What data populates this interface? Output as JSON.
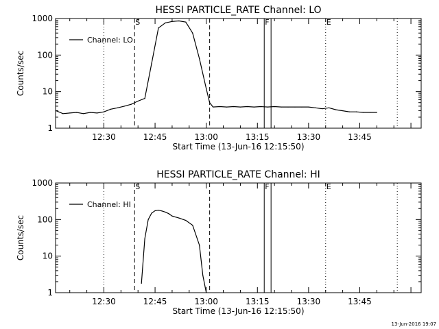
{
  "footer_date": "13-Jun-2016 19:07",
  "chart_data": [
    {
      "type": "line",
      "title": "HESSI PARTICLE_RATE Channel: LO",
      "xlabel": "Start Time (13-Jun-16 12:15:50)",
      "ylabel": "Counts/sec",
      "yscale": "log",
      "ylim": [
        1,
        1000
      ],
      "ytick_labels": [
        "1",
        "10",
        "100",
        "1000"
      ],
      "xlim": [
        "12:15:50",
        "14:03:00"
      ],
      "xtick_labels": [
        "12:30",
        "12:45",
        "13:00",
        "13:15",
        "13:30",
        "13:45"
      ],
      "legend": "top-left",
      "series": [
        {
          "name": "Channel: LO",
          "x": [
            "12:16",
            "12:18",
            "12:20",
            "12:22",
            "12:24",
            "12:26",
            "12:28",
            "12:30",
            "12:32",
            "12:34",
            "12:36",
            "12:38",
            "12:40",
            "12:42",
            "12:44",
            "12:46",
            "12:48",
            "12:50",
            "12:52",
            "12:54",
            "12:56",
            "12:58",
            "13:00",
            "13:01",
            "13:02",
            "13:04",
            "13:06",
            "13:08",
            "13:10",
            "13:12",
            "13:14",
            "13:16",
            "13:18",
            "13:20",
            "13:22",
            "13:24",
            "13:26",
            "13:28",
            "13:30",
            "13:32",
            "13:34",
            "13:36",
            "13:38",
            "13:40",
            "13:42",
            "13:44",
            "13:46",
            "13:48",
            "13:50"
          ],
          "y": [
            3,
            2.5,
            2.6,
            2.7,
            2.5,
            2.7,
            2.6,
            2.8,
            3.3,
            3.6,
            4,
            4.5,
            5.5,
            6.5,
            60,
            550,
            760,
            830,
            860,
            800,
            400,
            80,
            12,
            5,
            3.8,
            3.9,
            3.8,
            3.9,
            3.8,
            3.9,
            3.8,
            3.9,
            3.8,
            3.9,
            3.8,
            3.8,
            3.8,
            3.8,
            3.8,
            3.6,
            3.4,
            3.6,
            3.2,
            3,
            2.8,
            2.8,
            2.7,
            2.7,
            2.7
          ]
        }
      ],
      "markers": [
        {
          "label": "S",
          "time": "12:39",
          "style": "dashed"
        },
        {
          "label": "",
          "time": "13:01",
          "style": "dashed"
        },
        {
          "label": "",
          "time": "12:30",
          "style": "dotted"
        },
        {
          "label": "F",
          "time": "13:17",
          "style": "solid"
        },
        {
          "label": "",
          "time": "13:19",
          "style": "solid"
        },
        {
          "label": "E",
          "time": "13:35",
          "style": "dotted"
        },
        {
          "label": "",
          "time": "13:56",
          "style": "dotted"
        }
      ]
    },
    {
      "type": "line",
      "title": "HESSI PARTICLE_RATE Channel: HI",
      "xlabel": "Start Time (13-Jun-16 12:15:50)",
      "ylabel": "Counts/sec",
      "yscale": "log",
      "ylim": [
        1,
        1000
      ],
      "ytick_labels": [
        "1",
        "10",
        "100",
        "1000"
      ],
      "xlim": [
        "12:15:50",
        "14:03:00"
      ],
      "xtick_labels": [
        "12:30",
        "12:45",
        "13:00",
        "13:15",
        "13:30",
        "13:45"
      ],
      "legend": "top-left",
      "series": [
        {
          "name": "Channel: HI",
          "x": [
            "12:41",
            "12:42",
            "12:43",
            "12:44",
            "12:45",
            "12:46",
            "12:47",
            "12:48",
            "12:49",
            "12:50",
            "12:52",
            "12:54",
            "12:56",
            "12:58",
            "12:59",
            "13:00"
          ],
          "y": [
            1.8,
            30,
            100,
            150,
            175,
            180,
            172,
            160,
            145,
            125,
            110,
            95,
            70,
            20,
            3,
            1
          ]
        }
      ],
      "markers": [
        {
          "label": "S",
          "time": "12:39",
          "style": "dashed"
        },
        {
          "label": "",
          "time": "13:01",
          "style": "dashed"
        },
        {
          "label": "",
          "time": "12:30",
          "style": "dotted"
        },
        {
          "label": "F",
          "time": "13:17",
          "style": "solid"
        },
        {
          "label": "",
          "time": "13:19",
          "style": "solid"
        },
        {
          "label": "E",
          "time": "13:35",
          "style": "dotted"
        },
        {
          "label": "",
          "time": "13:56",
          "style": "dotted"
        }
      ]
    }
  ]
}
